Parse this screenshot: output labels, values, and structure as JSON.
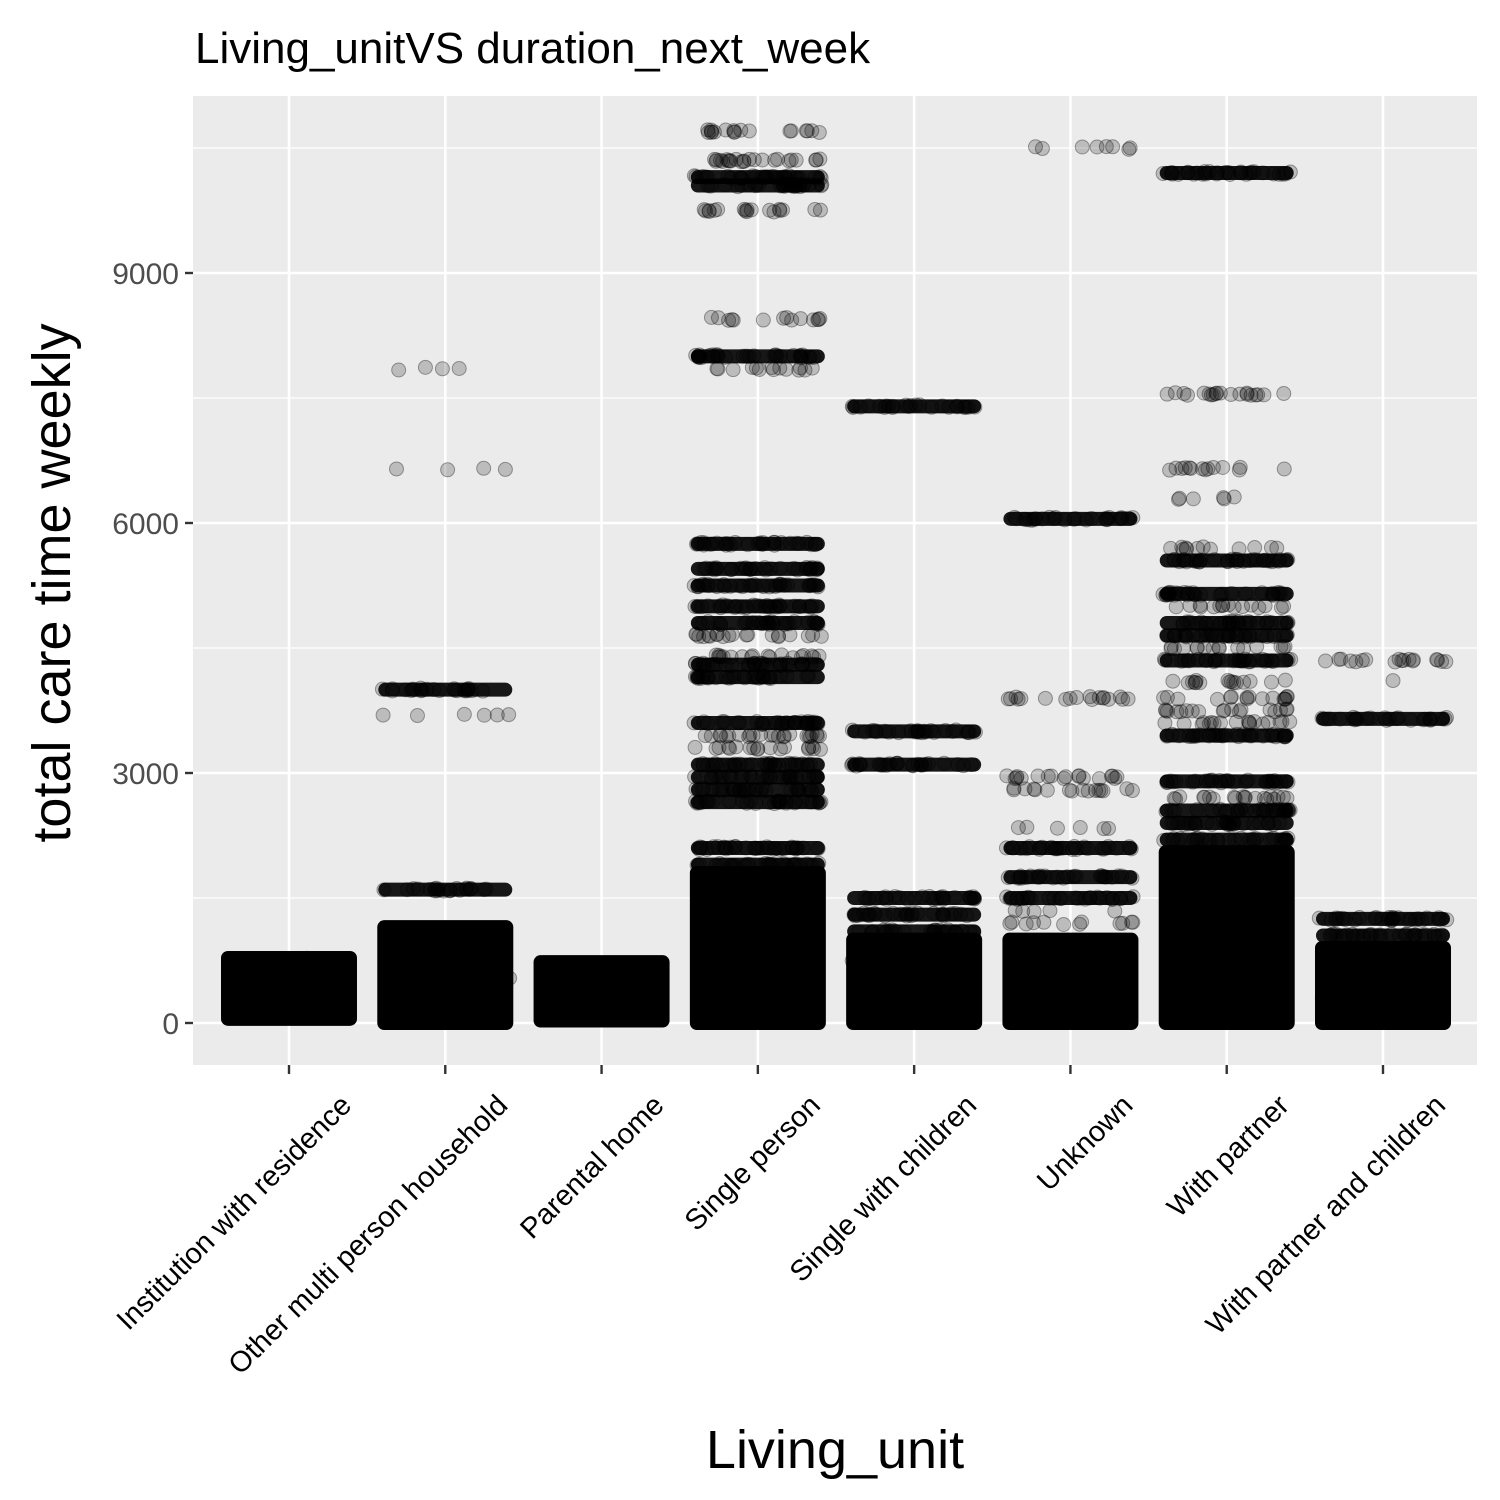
{
  "chart_data": {
    "type": "scatter",
    "title": "Living_unitVS duration_next_week",
    "xlabel": "Living_unit",
    "ylabel": "total care time weekly",
    "ylim": [
      -500,
      11100
    ],
    "yticks": [
      0,
      3000,
      6000,
      9000
    ],
    "yticks_labels": [
      "0",
      "3000",
      "6000",
      "9000"
    ],
    "grid": true,
    "legend": "none",
    "point_color": "#000000",
    "panel_color": "#ebebeb",
    "grid_color": "#ffffff",
    "point_alpha": 0.2,
    "categories": [
      "Institution with residence",
      "Other multi person household",
      "Parental home",
      "Single person",
      "Single with children",
      "Unknown",
      "With partner",
      "With partner and children"
    ],
    "groups": [
      {
        "category": "Institution with residence",
        "dense_range": [
          50,
          780
        ],
        "lines": []
      },
      {
        "category": "Other multi person household",
        "dense_range": [
          0,
          1150
        ],
        "lines": [
          {
            "y": 1600,
            "n": 22,
            "dense": true
          },
          {
            "y": 3700,
            "n": 6
          },
          {
            "y": 4000,
            "n": 24,
            "dense": true
          },
          {
            "y": 6650,
            "n": 4
          },
          {
            "y": 7850,
            "n": 4
          }
        ]
      },
      {
        "category": "Parental home",
        "dense_range": [
          30,
          730
        ],
        "lines": []
      },
      {
        "category": "Single person",
        "dense_range": [
          0,
          1800
        ],
        "lines": [
          {
            "y": 1900,
            "n": 30,
            "dense": true
          },
          {
            "y": 2100,
            "n": 30,
            "dense": true
          },
          {
            "y": 2650,
            "n": 30,
            "dense": true
          },
          {
            "y": 2800,
            "n": 30,
            "dense": true
          },
          {
            "y": 2950,
            "n": 30,
            "dense": true
          },
          {
            "y": 3100,
            "n": 30,
            "dense": true
          },
          {
            "y": 3300,
            "n": 18
          },
          {
            "y": 3450,
            "n": 24
          },
          {
            "y": 3600,
            "n": 30,
            "dense": true
          },
          {
            "y": 4150,
            "n": 30,
            "dense": true
          },
          {
            "y": 4300,
            "n": 30,
            "dense": true
          },
          {
            "y": 4400,
            "n": 18
          },
          {
            "y": 4650,
            "n": 20
          },
          {
            "y": 4800,
            "n": 30,
            "dense": true
          },
          {
            "y": 5000,
            "n": 30,
            "dense": true
          },
          {
            "y": 5250,
            "n": 30,
            "dense": true
          },
          {
            "y": 5450,
            "n": 30,
            "dense": true
          },
          {
            "y": 5750,
            "n": 30,
            "dense": true
          },
          {
            "y": 7850,
            "n": 14
          },
          {
            "y": 8000,
            "n": 30,
            "dense": true
          },
          {
            "y": 8450,
            "n": 14
          },
          {
            "y": 9750,
            "n": 18
          },
          {
            "y": 10050,
            "n": 30,
            "dense": true
          },
          {
            "y": 10150,
            "n": 30,
            "dense": true
          },
          {
            "y": 10350,
            "n": 24
          },
          {
            "y": 10700,
            "n": 18
          }
        ]
      },
      {
        "category": "Single with children",
        "dense_range": [
          0,
          1000
        ],
        "lines": [
          {
            "y": 1100,
            "n": 26,
            "dense": true
          },
          {
            "y": 1300,
            "n": 26,
            "dense": true
          },
          {
            "y": 1500,
            "n": 26,
            "dense": true
          },
          {
            "y": 3100,
            "n": 26,
            "dense": true
          },
          {
            "y": 3500,
            "n": 26,
            "dense": true
          },
          {
            "y": 7400,
            "n": 24,
            "dense": true
          }
        ]
      },
      {
        "category": "Unknown",
        "dense_range": [
          0,
          1000
        ],
        "lines": [
          {
            "y": 1200,
            "n": 12
          },
          {
            "y": 1350,
            "n": 5
          },
          {
            "y": 1500,
            "n": 26,
            "dense": true
          },
          {
            "y": 1750,
            "n": 26,
            "dense": true
          },
          {
            "y": 2100,
            "n": 26,
            "dense": true
          },
          {
            "y": 2350,
            "n": 6
          },
          {
            "y": 2800,
            "n": 16
          },
          {
            "y": 2950,
            "n": 18
          },
          {
            "y": 3900,
            "n": 18
          },
          {
            "y": 6050,
            "n": 26,
            "dense": true
          },
          {
            "y": 10500,
            "n": 8
          }
        ]
      },
      {
        "category": "With partner",
        "dense_range": [
          0,
          2050
        ],
        "lines": [
          {
            "y": 2200,
            "n": 30,
            "dense": true
          },
          {
            "y": 2400,
            "n": 30,
            "dense": true
          },
          {
            "y": 2550,
            "n": 30,
            "dense": true
          },
          {
            "y": 2700,
            "n": 20
          },
          {
            "y": 2900,
            "n": 30,
            "dense": true
          },
          {
            "y": 3450,
            "n": 30,
            "dense": true
          },
          {
            "y": 3600,
            "n": 18
          },
          {
            "y": 3750,
            "n": 18
          },
          {
            "y": 3900,
            "n": 16
          },
          {
            "y": 4100,
            "n": 16
          },
          {
            "y": 4350,
            "n": 30,
            "dense": true
          },
          {
            "y": 4500,
            "n": 16
          },
          {
            "y": 4650,
            "n": 30,
            "dense": true
          },
          {
            "y": 4800,
            "n": 30,
            "dense": true
          },
          {
            "y": 5000,
            "n": 16
          },
          {
            "y": 5150,
            "n": 30,
            "dense": true
          },
          {
            "y": 5550,
            "n": 30,
            "dense": true
          },
          {
            "y": 5700,
            "n": 12
          },
          {
            "y": 6300,
            "n": 6
          },
          {
            "y": 6650,
            "n": 14
          },
          {
            "y": 7550,
            "n": 20
          },
          {
            "y": 10200,
            "n": 30,
            "dense": true
          }
        ]
      },
      {
        "category": "With partner and children",
        "dense_range": [
          0,
          900
        ],
        "lines": [
          {
            "y": 1050,
            "n": 30,
            "dense": true
          },
          {
            "y": 1250,
            "n": 30,
            "dense": true
          },
          {
            "y": 3650,
            "n": 24,
            "dense": true
          },
          {
            "y": 4100,
            "n": 1
          },
          {
            "y": 4350,
            "n": 18
          }
        ]
      }
    ]
  }
}
